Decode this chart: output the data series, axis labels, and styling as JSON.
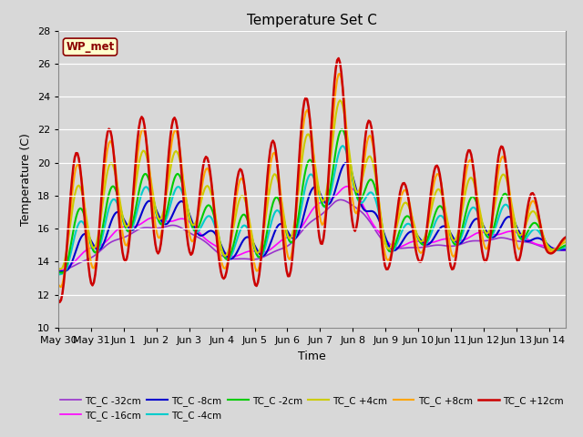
{
  "title": "Temperature Set C",
  "xlabel": "Time",
  "ylabel": "Temperature (C)",
  "ylim": [
    10,
    28
  ],
  "yticks": [
    10,
    12,
    14,
    16,
    18,
    20,
    22,
    24,
    26,
    28
  ],
  "bg_color": "#d8d8d8",
  "plot_bg_color": "#d8d8d8",
  "wp_met_label": "WP_met",
  "wp_met_bg": "#ffffcc",
  "wp_met_border": "#8B0000",
  "wp_met_text": "#8B0000",
  "series_names": [
    "TC_C -32cm",
    "TC_C -16cm",
    "TC_C -8cm",
    "TC_C -4cm",
    "TC_C -2cm",
    "TC_C +4cm",
    "TC_C +8cm",
    "TC_C +12cm"
  ],
  "series_colors": [
    "#9932CC",
    "#FF00FF",
    "#0000CD",
    "#00CCCC",
    "#00CC00",
    "#CCCC00",
    "#FFA500",
    "#CC0000"
  ],
  "series_lw": [
    1.2,
    1.2,
    1.5,
    1.5,
    1.5,
    1.5,
    1.5,
    1.8
  ],
  "tick_labels": [
    "May 30",
    "May 31",
    "Jun 1",
    "Jun 2",
    "Jun 3",
    "Jun 4",
    "Jun 5",
    "Jun 6",
    "Jun 7",
    "Jun 8",
    "Jun 9",
    "Jun 10",
    "Jun 11",
    "Jun 12",
    "Jun 13",
    "Jun 14"
  ]
}
